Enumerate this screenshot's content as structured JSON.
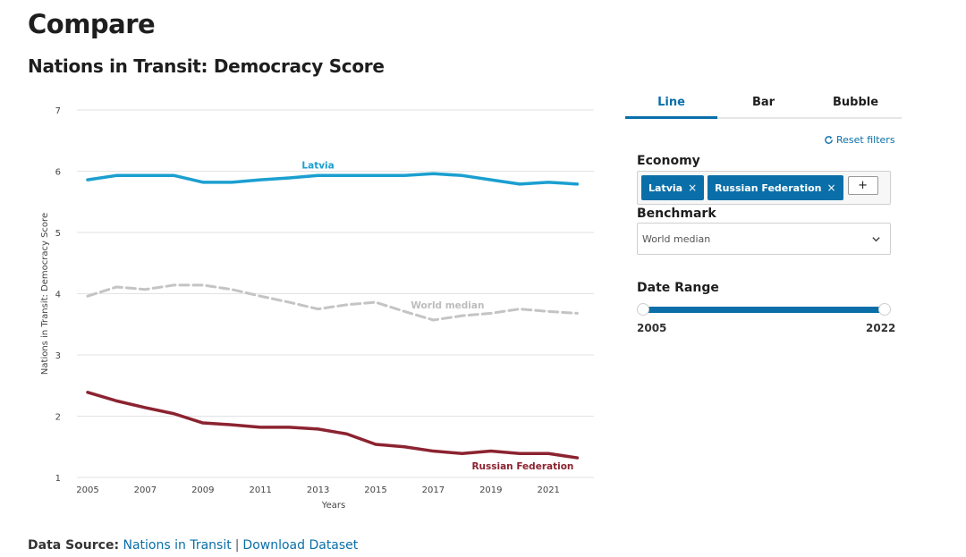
{
  "page": {
    "title": "Compare",
    "chart_heading": "Nations in Transit: Democracy Score"
  },
  "tabs": [
    {
      "label": "Line",
      "active": true
    },
    {
      "label": "Bar",
      "active": false
    },
    {
      "label": "Bubble",
      "active": false
    }
  ],
  "controls": {
    "reset_label": "Reset filters",
    "economy_label": "Economy",
    "economies": [
      "Latvia",
      "Russian Federation"
    ],
    "remove_glyph": "×",
    "add_glyph": "+",
    "benchmark_label": "Benchmark",
    "benchmark_value": "World median",
    "date_range_label": "Date Range",
    "date_start": "2005",
    "date_end": "2022"
  },
  "footer": {
    "prefix": "Data Source:",
    "source_link": "Nations in Transit",
    "separator": "|",
    "download_link": "Download Dataset"
  },
  "colors": {
    "latvia": "#1b9fd0",
    "russia": "#8c2330",
    "world_median": "#c4c4c4",
    "accent": "#0a6fa8"
  },
  "chart_data": {
    "type": "line",
    "title": "Nations in Transit: Democracy Score",
    "xlabel": "Years",
    "ylabel": "Nations in Transit: Democracy Score",
    "ylim": [
      1,
      7
    ],
    "yticks": [
      1,
      2,
      3,
      4,
      5,
      6,
      7
    ],
    "xlim": [
      2005,
      2022
    ],
    "xticks": [
      2005,
      2007,
      2009,
      2011,
      2013,
      2015,
      2017,
      2019,
      2021
    ],
    "grid": true,
    "x": [
      2005,
      2006,
      2007,
      2008,
      2009,
      2010,
      2011,
      2012,
      2013,
      2014,
      2015,
      2016,
      2017,
      2018,
      2019,
      2020,
      2021,
      2022
    ],
    "series": [
      {
        "name": "Latvia",
        "style": "solid",
        "values": [
          5.86,
          5.93,
          5.93,
          5.93,
          5.82,
          5.82,
          5.86,
          5.89,
          5.93,
          5.93,
          5.93,
          5.93,
          5.96,
          5.93,
          5.86,
          5.79,
          5.82,
          5.79
        ],
        "label_at": 2013
      },
      {
        "name": "World median",
        "style": "dashed",
        "values": [
          3.96,
          4.11,
          4.07,
          4.14,
          4.14,
          4.07,
          3.96,
          3.86,
          3.75,
          3.82,
          3.86,
          3.71,
          3.57,
          3.64,
          3.68,
          3.75,
          3.71,
          3.68
        ],
        "label_at": 2017
      },
      {
        "name": "Russian Federation",
        "style": "solid",
        "values": [
          2.39,
          2.25,
          2.14,
          2.04,
          1.89,
          1.86,
          1.82,
          1.82,
          1.79,
          1.71,
          1.54,
          1.5,
          1.43,
          1.39,
          1.43,
          1.39,
          1.39,
          1.32
        ],
        "label_at": 2022
      }
    ]
  }
}
